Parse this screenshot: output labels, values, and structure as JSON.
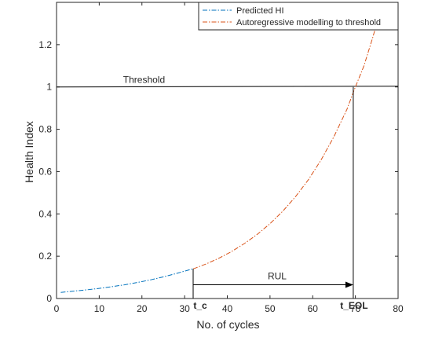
{
  "chart_data": {
    "type": "line",
    "xlabel": "No. of cycles",
    "ylabel": "Health Index",
    "xlim": [
      0,
      80
    ],
    "ylim": [
      0,
      1.4
    ],
    "xticks": [
      0,
      10,
      20,
      30,
      40,
      50,
      60,
      70,
      80
    ],
    "yticks": [
      0,
      0.2,
      0.4,
      0.6,
      0.8,
      1,
      1.2
    ],
    "legend_position": "top-right",
    "series": [
      {
        "name": "Predicted HI",
        "color": "#0072BD",
        "style": "dash-dot",
        "x": [
          1,
          4,
          7,
          10,
          13,
          16,
          19,
          22,
          25,
          28,
          31,
          32
        ],
        "y": [
          0.029,
          0.035,
          0.041,
          0.048,
          0.056,
          0.065,
          0.076,
          0.088,
          0.102,
          0.118,
          0.135,
          0.14
        ]
      },
      {
        "name": "Autoregressive modelling to threshold",
        "color": "#D95319",
        "style": "dash-dot",
        "x": [
          32,
          35,
          38,
          41,
          44,
          47,
          50,
          53,
          56,
          59,
          62,
          65,
          68,
          70,
          72,
          74,
          75
        ],
        "y": [
          0.14,
          0.163,
          0.19,
          0.222,
          0.26,
          0.303,
          0.354,
          0.413,
          0.482,
          0.562,
          0.656,
          0.766,
          0.894,
          1.0,
          1.1,
          1.23,
          1.3
        ]
      }
    ],
    "threshold": {
      "value": 1,
      "label": "Threshold"
    },
    "markers": [
      {
        "label": "t_c",
        "x": 32,
        "y": 0.14
      },
      {
        "label": "t_EOL",
        "x": 69.5,
        "y": 1.0
      }
    ],
    "rul": {
      "label": "RUL",
      "from": 32,
      "to": 69.5,
      "y": 0.065
    }
  }
}
